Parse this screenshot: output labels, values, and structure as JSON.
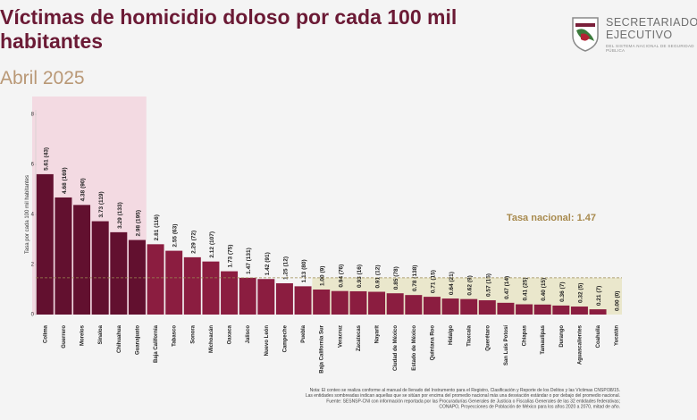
{
  "chart_data": {
    "type": "bar",
    "title": "Víctimas de homicidio doloso por cada 100 mil habitantes",
    "subtitle": "Abril 2025",
    "y_label": "Tasa por cada 100 mil habitantes",
    "categories": [
      "Colima",
      "Guerrero",
      "Morelos",
      "Sinaloa",
      "Chihuahua",
      "Guanajuato",
      "Baja California",
      "Tabasco",
      "Sonora",
      "Michoacán",
      "Oaxaca",
      "Jalisco",
      "Nuevo León",
      "Campeche",
      "Puebla",
      "Baja California Sur",
      "Veracruz",
      "Zacatecas",
      "Nayarit",
      "Ciudad de México",
      "Estado de México",
      "Quintana Roo",
      "Hidalgo",
      "Tlaxcala",
      "Querétaro",
      "San Luis Potosí",
      "Chiapas",
      "Tamaulipas",
      "Durango",
      "Aguascalientes",
      "Coahuila",
      "Yucatán"
    ],
    "values": [
      5.61,
      4.68,
      4.38,
      3.73,
      3.29,
      2.98,
      2.81,
      2.55,
      2.29,
      2.12,
      1.73,
      1.47,
      1.42,
      1.25,
      1.13,
      1.0,
      0.94,
      0.93,
      0.91,
      0.85,
      0.78,
      0.71,
      0.64,
      0.62,
      0.57,
      0.47,
      0.41,
      0.4,
      0.36,
      0.32,
      0.21,
      0.0
    ],
    "value_labels": [
      "5.61 (43)",
      "4.68 (169)",
      "4.38 (90)",
      "3.73 (119)",
      "3.29 (133)",
      "2.98 (195)",
      "2.81 (116)",
      "2.55 (63)",
      "2.29 (72)",
      "2.12 (107)",
      "1.73 (75)",
      "1.47 (131)",
      "1.42 (91)",
      "1.25 (12)",
      "1.13 (80)",
      "1.00 (9)",
      "0.94 (76)",
      "0.93 (16)",
      "0.91 (12)",
      "0.85 (78)",
      "0.78 (138)",
      "0.71 (15)",
      "0.64 (21)",
      "0.62 (9)",
      "0.57 (15)",
      "0.47 (14)",
      "0.41 (25)",
      "0.40 (15)",
      "0.36 (7)",
      "0.32 (5)",
      "0.21 (7)",
      "0.00 (0)"
    ],
    "colors": [
      "#62102f",
      "#62102f",
      "#62102f",
      "#62102f",
      "#62102f",
      "#62102f",
      "#8b1d40",
      "#8b1d40",
      "#8b1d40",
      "#8b1d40",
      "#8b1d40",
      "#8b1d40",
      "#8b1d40",
      "#8b1d40",
      "#8b1d40",
      "#8b1d40",
      "#8b1d40",
      "#8b1d40",
      "#8b1d40",
      "#8b1d40",
      "#8b1d40",
      "#8b1d40",
      "#8b1d40",
      "#8b1d40",
      "#8b1d40",
      "#8b1d40",
      "#8b1d40",
      "#8b1d40",
      "#8b1d40",
      "#8b1d40",
      "#8b1d40",
      "#8b1d40"
    ],
    "ylim": [
      0,
      8
    ],
    "yticks": [
      0,
      2,
      4,
      6,
      8
    ],
    "reference_line": {
      "value": 1.47,
      "label": "Tasa nacional: 1.47"
    },
    "footnote": [
      "Nota: El conteo se realiza conforme al manual de llenado del Instrumento para el Registro, Clasificación y Reporte de los Delitos y las Víctimas CNSP/38/15.",
      "Las entidades sombreadas indican aquellas que se sitúan por encima del promedio nacional más una desviación estándar o por debajo del promedio nacional.",
      "Fuente: SESNSP-CNI con información reportada por las Procuradurías Generales de Justicia o Fiscalías Generales de las 32 entidades federativas;",
      "CONAPO, Proyecciones de Población de México para los años 2020 a 2070, mitad de año."
    ]
  },
  "logo": {
    "line1": "SECRETARIADO",
    "line2": "EJECUTIVO",
    "line3": "DEL SISTEMA NACIONAL DE SEGURIDAD PÚBLICA"
  }
}
